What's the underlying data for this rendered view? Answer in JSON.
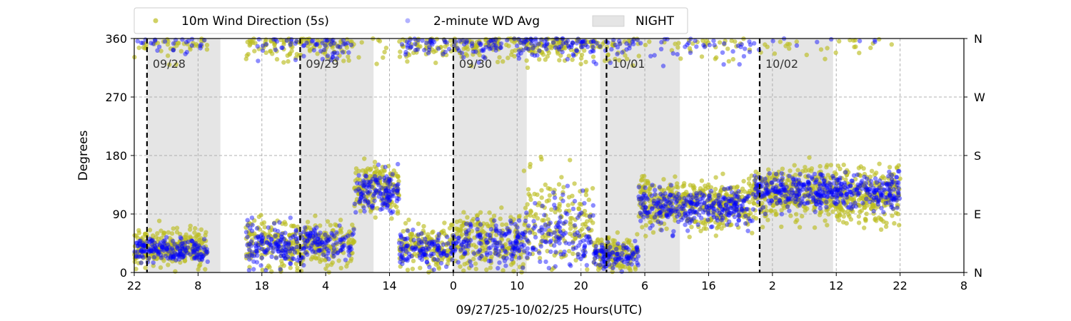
{
  "chart_data": {
    "type": "scatter",
    "xlabel": "09/27/25-10/02/25  Hours(UTC)",
    "ylabel": "Degrees",
    "xlim": [
      "2025-09-27 22:00",
      "2025-10-03 08:00"
    ],
    "ylim": [
      0,
      360
    ],
    "x_ticks": [
      "22",
      "8",
      "18",
      "4",
      "14",
      "0",
      "10",
      "20",
      "6",
      "16",
      "2",
      "12",
      "22",
      "8"
    ],
    "y_ticks": [
      "0",
      "90",
      "180",
      "270",
      "360"
    ],
    "y2_ticks": [
      "N",
      "E",
      "S",
      "W",
      "N"
    ],
    "grid": true,
    "legend_position": "top-center, outside",
    "legend": [
      "10m Wind Direction (5s)",
      "2-minute WD Avg",
      "NIGHT"
    ],
    "day_boundaries": [
      {
        "time": "2025-09-28 00:00",
        "label": "09/28"
      },
      {
        "time": "2025-09-29 00:00",
        "label": "09/29"
      },
      {
        "time": "2025-09-30 00:00",
        "label": "09/30"
      },
      {
        "time": "2025-10-01 00:00",
        "label": "10/01"
      },
      {
        "time": "2025-10-02 00:00",
        "label": "10/02"
      }
    ],
    "night_periods": [
      {
        "start": "2025-09-28 00:00",
        "end": "2025-09-28 11:30"
      },
      {
        "start": "2025-09-29 00:00",
        "end": "2025-09-29 11:30"
      },
      {
        "start": "2025-09-30 00:00",
        "end": "2025-09-30 11:30"
      },
      {
        "start": "2025-09-30 23:00",
        "end": "2025-10-01 11:30"
      },
      {
        "start": "2025-10-02 00:00",
        "end": "2025-10-02 11:30"
      }
    ],
    "series": [
      {
        "name": "10m Wind Direction (5s)",
        "color": "#bcbd22",
        "segments": [
          {
            "start": "2025-09-27 22:00",
            "end": "2025-09-28 09:30",
            "level": 40,
            "spread": 30,
            "wrap_fraction": 0.15
          },
          {
            "start": "2025-09-28 15:30",
            "end": "2025-09-29 00:30",
            "level": 40,
            "spread": 45,
            "wrap_fraction": 0.2
          },
          {
            "start": "2025-09-29 00:30",
            "end": "2025-09-29 08:30",
            "level": 45,
            "spread": 35,
            "wrap_fraction": 0.3
          },
          {
            "start": "2025-09-29 08:30",
            "end": "2025-09-29 15:30",
            "level": 130,
            "spread": 40,
            "wrap_fraction": 0.05
          },
          {
            "start": "2025-09-29 15:30",
            "end": "2025-09-30 00:00",
            "level": 40,
            "spread": 35,
            "wrap_fraction": 0.25
          },
          {
            "start": "2025-09-30 00:00",
            "end": "2025-09-30 11:00",
            "level": 50,
            "spread": 45,
            "wrap_fraction": 0.35
          },
          {
            "start": "2025-09-30 11:00",
            "end": "2025-09-30 22:00",
            "level": 80,
            "spread": 70,
            "wrap_fraction": 0.4
          },
          {
            "start": "2025-09-30 22:00",
            "end": "2025-10-01 05:00",
            "level": 30,
            "spread": 30,
            "wrap_fraction": 0.2
          },
          {
            "start": "2025-10-01 05:00",
            "end": "2025-10-01 23:00",
            "level": 105,
            "spread": 40,
            "wrap_fraction": 0.1
          },
          {
            "start": "2025-10-01 23:00",
            "end": "2025-10-02 22:00",
            "level": 120,
            "spread": 40,
            "wrap_fraction": 0.05
          }
        ]
      },
      {
        "name": "2-minute WD Avg",
        "color": "#0000ff",
        "segments": [
          {
            "start": "2025-09-27 22:00",
            "end": "2025-09-28 09:30",
            "level": 35,
            "spread": 18,
            "wrap_fraction": 0.1
          },
          {
            "start": "2025-09-28 15:30",
            "end": "2025-09-29 00:30",
            "level": 40,
            "spread": 35,
            "wrap_fraction": 0.15
          },
          {
            "start": "2025-09-29 00:30",
            "end": "2025-09-29 08:30",
            "level": 45,
            "spread": 25,
            "wrap_fraction": 0.25
          },
          {
            "start": "2025-09-29 08:30",
            "end": "2025-09-29 15:30",
            "level": 125,
            "spread": 30,
            "wrap_fraction": 0.0
          },
          {
            "start": "2025-09-29 15:30",
            "end": "2025-09-30 00:00",
            "level": 35,
            "spread": 25,
            "wrap_fraction": 0.2
          },
          {
            "start": "2025-09-30 00:00",
            "end": "2025-09-30 11:00",
            "level": 45,
            "spread": 35,
            "wrap_fraction": 0.25
          },
          {
            "start": "2025-09-30 11:00",
            "end": "2025-09-30 22:00",
            "level": 60,
            "spread": 60,
            "wrap_fraction": 0.35
          },
          {
            "start": "2025-09-30 22:00",
            "end": "2025-10-01 05:00",
            "level": 25,
            "spread": 20,
            "wrap_fraction": 0.2
          },
          {
            "start": "2025-10-01 05:00",
            "end": "2025-10-01 23:00",
            "level": 100,
            "spread": 30,
            "wrap_fraction": 0.1
          },
          {
            "start": "2025-10-01 23:00",
            "end": "2025-10-02 22:00",
            "level": 125,
            "spread": 25,
            "wrap_fraction": 0.02
          }
        ]
      }
    ]
  }
}
